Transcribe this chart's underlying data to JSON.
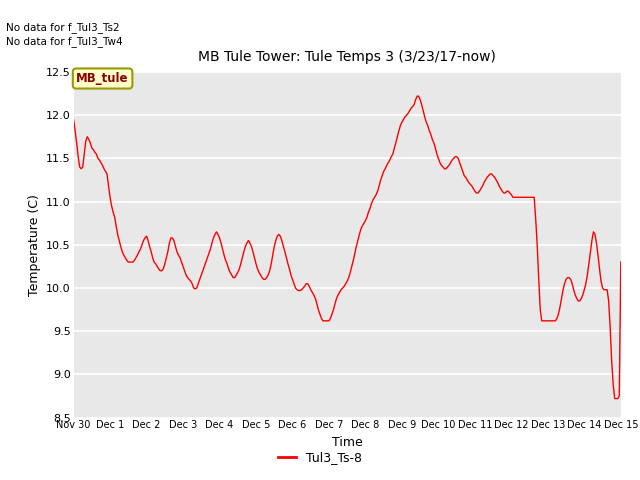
{
  "title": "MB Tule Tower: Tule Temps 3 (3/23/17-now)",
  "xlabel": "Time",
  "ylabel": "Temperature (C)",
  "no_data_text": [
    "No data for f_Tul3_Ts2",
    "No data for f_Tul3_Tw4"
  ],
  "legend_label": "Tul3_Ts-8",
  "box_label": "MB_tule",
  "ylim": [
    8.5,
    12.5
  ],
  "line_color": "red",
  "bg_color": "#e8e8e8",
  "x_tick_labels": [
    "Nov 30",
    "Dec 1",
    "Dec 2",
    "Dec 3",
    "Dec 4",
    "Dec 5",
    "Dec 6",
    "Dec 7",
    "Dec 8",
    "Dec 9",
    "Dec 10",
    "Dec 11",
    "Dec 12",
    "Dec 13",
    "Dec 14",
    "Dec 15"
  ],
  "x_ticks": [
    0,
    1,
    2,
    3,
    4,
    5,
    6,
    7,
    8,
    9,
    10,
    11,
    12,
    13,
    14,
    15
  ],
  "y_ticks": [
    8.5,
    9.0,
    9.5,
    10.0,
    10.5,
    11.0,
    11.5,
    12.0,
    12.5
  ],
  "data_x": [
    0.0,
    0.042,
    0.083,
    0.125,
    0.167,
    0.208,
    0.25,
    0.292,
    0.333,
    0.375,
    0.417,
    0.458,
    0.5,
    0.542,
    0.583,
    0.625,
    0.667,
    0.708,
    0.75,
    0.792,
    0.833,
    0.875,
    0.917,
    0.958,
    1.0,
    1.042,
    1.083,
    1.125,
    1.167,
    1.208,
    1.25,
    1.292,
    1.333,
    1.375,
    1.417,
    1.458,
    1.5,
    1.542,
    1.583,
    1.625,
    1.667,
    1.708,
    1.75,
    1.792,
    1.833,
    1.875,
    1.917,
    1.958,
    2.0,
    2.042,
    2.083,
    2.125,
    2.167,
    2.208,
    2.25,
    2.292,
    2.333,
    2.375,
    2.417,
    2.458,
    2.5,
    2.542,
    2.583,
    2.625,
    2.667,
    2.708,
    2.75,
    2.792,
    2.833,
    2.875,
    2.917,
    2.958,
    3.0,
    3.042,
    3.083,
    3.125,
    3.167,
    3.208,
    3.25,
    3.292,
    3.333,
    3.375,
    3.417,
    3.458,
    3.5,
    3.542,
    3.583,
    3.625,
    3.667,
    3.708,
    3.75,
    3.792,
    3.833,
    3.875,
    3.917,
    3.958,
    4.0,
    4.042,
    4.083,
    4.125,
    4.167,
    4.208,
    4.25,
    4.292,
    4.333,
    4.375,
    4.417,
    4.458,
    4.5,
    4.542,
    4.583,
    4.625,
    4.667,
    4.708,
    4.75,
    4.792,
    4.833,
    4.875,
    4.917,
    4.958,
    5.0,
    5.042,
    5.083,
    5.125,
    5.167,
    5.208,
    5.25,
    5.292,
    5.333,
    5.375,
    5.417,
    5.458,
    5.5,
    5.542,
    5.583,
    5.625,
    5.667,
    5.708,
    5.75,
    5.792,
    5.833,
    5.875,
    5.917,
    5.958,
    6.0,
    6.042,
    6.083,
    6.125,
    6.167,
    6.208,
    6.25,
    6.292,
    6.333,
    6.375,
    6.417,
    6.458,
    6.5,
    6.542,
    6.583,
    6.625,
    6.667,
    6.708,
    6.75,
    6.792,
    6.833,
    6.875,
    6.917,
    6.958,
    7.0,
    7.042,
    7.083,
    7.125,
    7.167,
    7.208,
    7.25,
    7.292,
    7.333,
    7.375,
    7.417,
    7.458,
    7.5,
    7.542,
    7.583,
    7.625,
    7.667,
    7.708,
    7.75,
    7.792,
    7.833,
    7.875,
    7.917,
    7.958,
    8.0,
    8.042,
    8.083,
    8.125,
    8.167,
    8.208,
    8.25,
    8.292,
    8.333,
    8.375,
    8.417,
    8.458,
    8.5,
    8.542,
    8.583,
    8.625,
    8.667,
    8.708,
    8.75,
    8.792,
    8.833,
    8.875,
    8.917,
    8.958,
    9.0,
    9.042,
    9.083,
    9.125,
    9.167,
    9.208,
    9.25,
    9.292,
    9.333,
    9.375,
    9.417,
    9.458,
    9.5,
    9.542,
    9.583,
    9.625,
    9.667,
    9.708,
    9.75,
    9.792,
    9.833,
    9.875,
    9.917,
    9.958,
    10.0,
    10.042,
    10.083,
    10.125,
    10.167,
    10.208,
    10.25,
    10.292,
    10.333,
    10.375,
    10.417,
    10.458,
    10.5,
    10.542,
    10.583,
    10.625,
    10.667,
    10.708,
    10.75,
    10.792,
    10.833,
    10.875,
    10.917,
    10.958,
    11.0,
    11.042,
    11.083,
    11.125,
    11.167,
    11.208,
    11.25,
    11.292,
    11.333,
    11.375,
    11.417,
    11.458,
    11.5,
    11.542,
    11.583,
    11.625,
    11.667,
    11.708,
    11.75,
    11.792,
    11.833,
    11.875,
    11.917,
    11.958,
    12.0,
    12.042,
    12.083,
    12.125,
    12.167,
    12.208,
    12.25,
    12.292,
    12.333,
    12.375,
    12.417,
    12.458,
    12.5,
    12.542,
    12.583,
    12.625,
    12.667,
    12.708,
    12.75,
    12.792,
    12.833,
    12.875,
    12.917,
    12.958,
    13.0,
    13.042,
    13.083,
    13.125,
    13.167,
    13.208,
    13.25,
    13.292,
    13.333,
    13.375,
    13.417,
    13.458,
    13.5,
    13.542,
    13.583,
    13.625,
    13.667,
    13.708,
    13.75,
    13.792,
    13.833,
    13.875,
    13.917,
    13.958,
    14.0,
    14.042,
    14.083,
    14.125,
    14.167,
    14.208,
    14.25,
    14.292,
    14.333,
    14.375,
    14.417,
    14.458,
    14.5,
    14.542,
    14.583,
    14.625,
    14.667,
    14.708,
    14.75,
    14.792,
    14.833,
    14.875,
    14.917,
    14.958,
    15.0
  ],
  "data_y": [
    11.95,
    11.82,
    11.68,
    11.52,
    11.4,
    11.38,
    11.4,
    11.55,
    11.7,
    11.75,
    11.72,
    11.68,
    11.62,
    11.6,
    11.57,
    11.55,
    11.5,
    11.48,
    11.45,
    11.42,
    11.38,
    11.35,
    11.32,
    11.18,
    11.05,
    10.95,
    10.88,
    10.82,
    10.72,
    10.62,
    10.55,
    10.48,
    10.42,
    10.38,
    10.35,
    10.32,
    10.3,
    10.3,
    10.3,
    10.3,
    10.32,
    10.35,
    10.38,
    10.42,
    10.45,
    10.5,
    10.55,
    10.58,
    10.6,
    10.55,
    10.48,
    10.42,
    10.35,
    10.3,
    10.28,
    10.25,
    10.22,
    10.2,
    10.2,
    10.22,
    10.28,
    10.35,
    10.42,
    10.52,
    10.58,
    10.58,
    10.55,
    10.48,
    10.42,
    10.38,
    10.35,
    10.3,
    10.25,
    10.2,
    10.15,
    10.12,
    10.1,
    10.08,
    10.05,
    10.0,
    9.99,
    10.0,
    10.05,
    10.1,
    10.15,
    10.2,
    10.25,
    10.3,
    10.35,
    10.4,
    10.45,
    10.52,
    10.58,
    10.62,
    10.65,
    10.62,
    10.58,
    10.52,
    10.45,
    10.38,
    10.32,
    10.28,
    10.22,
    10.18,
    10.15,
    10.12,
    10.12,
    10.15,
    10.18,
    10.22,
    10.28,
    10.35,
    10.42,
    10.48,
    10.52,
    10.55,
    10.52,
    10.48,
    10.42,
    10.35,
    10.28,
    10.22,
    10.18,
    10.15,
    10.12,
    10.1,
    10.1,
    10.12,
    10.15,
    10.2,
    10.28,
    10.38,
    10.48,
    10.55,
    10.6,
    10.62,
    10.6,
    10.55,
    10.48,
    10.42,
    10.35,
    10.28,
    10.22,
    10.15,
    10.1,
    10.05,
    10.0,
    9.98,
    9.97,
    9.97,
    9.98,
    10.0,
    10.02,
    10.05,
    10.05,
    10.02,
    9.98,
    9.95,
    9.92,
    9.88,
    9.82,
    9.75,
    9.7,
    9.65,
    9.62,
    9.62,
    9.62,
    9.62,
    9.62,
    9.65,
    9.7,
    9.75,
    9.82,
    9.88,
    9.92,
    9.95,
    9.98,
    10.0,
    10.02,
    10.05,
    10.08,
    10.12,
    10.18,
    10.25,
    10.32,
    10.4,
    10.48,
    10.55,
    10.62,
    10.68,
    10.72,
    10.75,
    10.78,
    10.82,
    10.88,
    10.92,
    10.98,
    11.02,
    11.05,
    11.08,
    11.12,
    11.18,
    11.25,
    11.3,
    11.35,
    11.38,
    11.42,
    11.45,
    11.48,
    11.52,
    11.55,
    11.62,
    11.68,
    11.75,
    11.82,
    11.88,
    11.92,
    11.95,
    11.98,
    12.0,
    12.02,
    12.05,
    12.08,
    12.1,
    12.12,
    12.18,
    12.22,
    12.22,
    12.18,
    12.12,
    12.05,
    11.98,
    11.92,
    11.88,
    11.82,
    11.78,
    11.72,
    11.68,
    11.62,
    11.55,
    11.5,
    11.45,
    11.42,
    11.4,
    11.38,
    11.38,
    11.4,
    11.42,
    11.45,
    11.48,
    11.5,
    11.52,
    11.52,
    11.5,
    11.45,
    11.4,
    11.35,
    11.3,
    11.28,
    11.25,
    11.22,
    11.2,
    11.18,
    11.15,
    11.12,
    11.1,
    11.1,
    11.12,
    11.15,
    11.18,
    11.22,
    11.25,
    11.28,
    11.3,
    11.32,
    11.32,
    11.3,
    11.28,
    11.25,
    11.22,
    11.18,
    11.15,
    11.12,
    11.1,
    11.1,
    11.12,
    11.12,
    11.1,
    11.08,
    11.05,
    11.05,
    11.05,
    11.05,
    11.05,
    11.05,
    11.05,
    11.05,
    11.05,
    11.05,
    11.05,
    11.05,
    11.05,
    11.05,
    11.05,
    10.8,
    10.5,
    10.1,
    9.75,
    9.62,
    9.62,
    9.62,
    9.62,
    9.62,
    9.62,
    9.62,
    9.62,
    9.62,
    9.62,
    9.65,
    9.7,
    9.78,
    9.88,
    9.98,
    10.05,
    10.1,
    10.12,
    10.12,
    10.1,
    10.05,
    9.98,
    9.92,
    9.88,
    9.85,
    9.85,
    9.88,
    9.92,
    9.98,
    10.05,
    10.15,
    10.28,
    10.42,
    10.55,
    10.65,
    10.62,
    10.52,
    10.38,
    10.22,
    10.08,
    10.0,
    9.98,
    9.98,
    9.98,
    9.85,
    9.55,
    9.15,
    8.88,
    8.72,
    8.72,
    8.72,
    8.75,
    10.3
  ]
}
